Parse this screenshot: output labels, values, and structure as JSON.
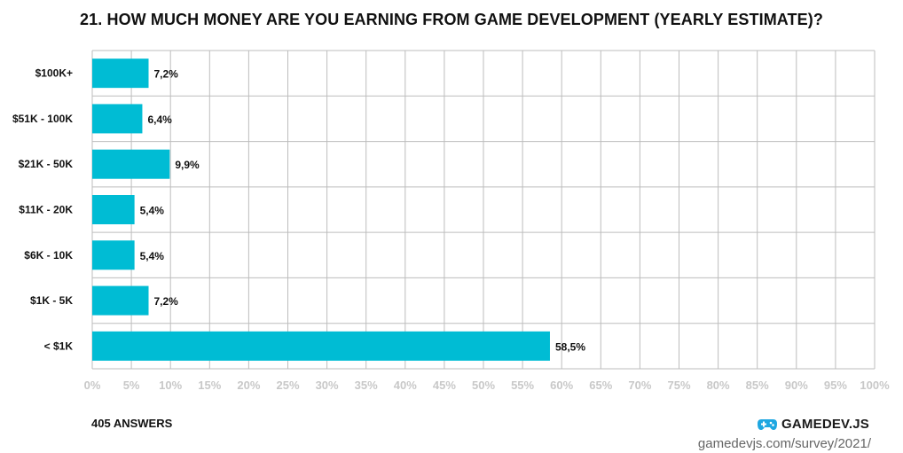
{
  "title": "21. HOW MUCH MONEY ARE YOU EARNING FROM GAME DEVELOPMENT (YEARLY ESTIMATE)?",
  "footer": {
    "answers": "405 ANSWERS",
    "brand_name": "GAMEDEV.JS",
    "url": "gamedevjs.com/survey/2021/",
    "brand_icon": "gamepad-icon"
  },
  "colors": {
    "bar": "#00bcd4",
    "grid": "#bdbdbd",
    "tick_label": "#c8c8c8",
    "text": "#111111",
    "brand": "#1ea7e1"
  },
  "chart_data": {
    "type": "bar",
    "orientation": "horizontal",
    "categories": [
      "$100K+",
      "$51K - 100K",
      "$21K - 50K",
      "$11K - 20K",
      "$6K - 10K",
      "$1K - 5K",
      "< $1K"
    ],
    "values": [
      7.2,
      6.4,
      9.9,
      5.4,
      5.4,
      7.2,
      58.5
    ],
    "value_labels": [
      "7,2%",
      "6,4%",
      "9,9%",
      "5,4%",
      "5,4%",
      "7,2%",
      "58,5%"
    ],
    "xlim": [
      0,
      100
    ],
    "xticks": [
      0,
      5,
      10,
      15,
      20,
      25,
      30,
      35,
      40,
      45,
      50,
      55,
      60,
      65,
      70,
      75,
      80,
      85,
      90,
      95,
      100
    ],
    "xtick_labels": [
      "0%",
      "5%",
      "10%",
      "15%",
      "20%",
      "25%",
      "30%",
      "35%",
      "40%",
      "45%",
      "50%",
      "55%",
      "60%",
      "65%",
      "70%",
      "75%",
      "80%",
      "85%",
      "90%",
      "95%",
      "100%"
    ],
    "grid": true,
    "legend": "none"
  }
}
